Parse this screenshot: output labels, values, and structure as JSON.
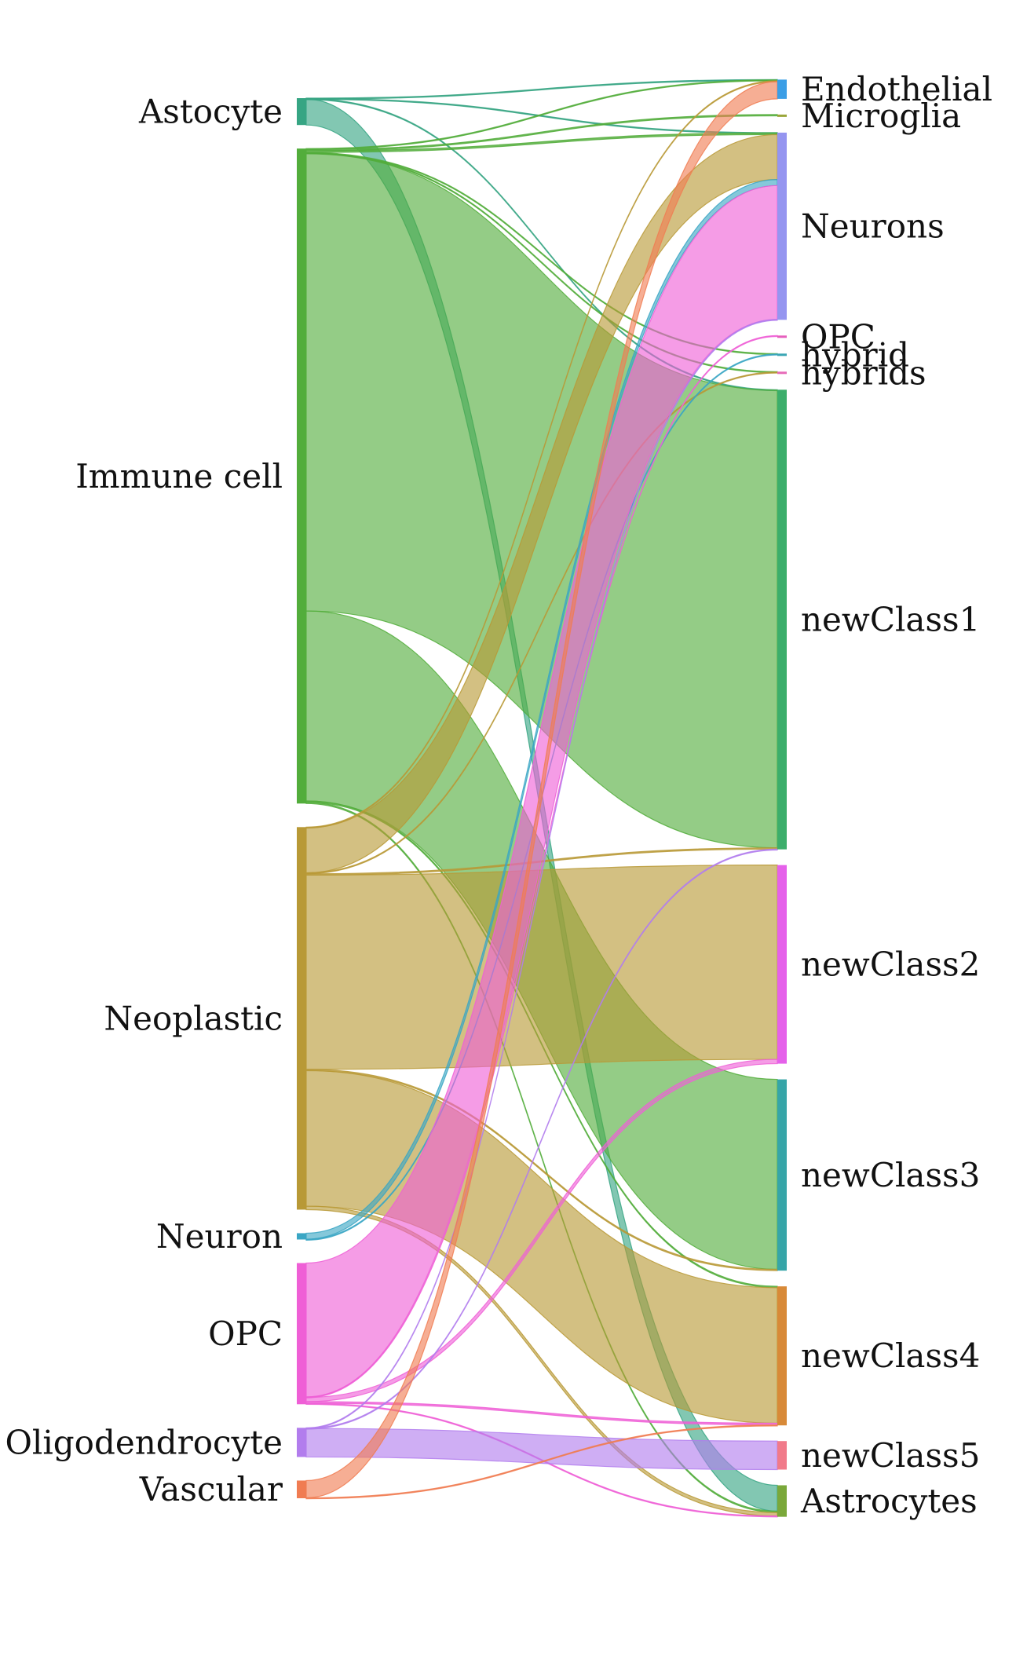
{
  "chart_data": {
    "type": "sankey",
    "title": "",
    "sources": [
      {
        "id": "astocyte",
        "label": "Astocyte",
        "color": "#36a583"
      },
      {
        "id": "immune",
        "label": "Immune cell",
        "color": "#52ad3b"
      },
      {
        "id": "neoplastic",
        "label": "Neoplastic",
        "color": "#b89936"
      },
      {
        "id": "neuron",
        "label": "Neuron",
        "color": "#3aa6c4"
      },
      {
        "id": "opc",
        "label": "OPC",
        "color": "#ef5fd6"
      },
      {
        "id": "oligo",
        "label": "Oligodendrocyte",
        "color": "#b27ded"
      },
      {
        "id": "vascular",
        "label": "Vascular",
        "color": "#f07c52"
      }
    ],
    "targets": [
      {
        "id": "endothelial",
        "label": "Endothelial",
        "color": "#3b9ee6"
      },
      {
        "id": "microglia",
        "label": "Microglia",
        "color": "#9aa63a"
      },
      {
        "id": "neurons",
        "label": "Neurons",
        "color": "#9595f0"
      },
      {
        "id": "t_opc",
        "label": "OPC",
        "color": "#e65fbd"
      },
      {
        "id": "hybrid",
        "label": "hybrid",
        "color": "#3aa6b4"
      },
      {
        "id": "hybrids",
        "label": "hybrids",
        "color": "#e66ab8"
      },
      {
        "id": "newClass1",
        "label": "newClass1",
        "color": "#3cae6b"
      },
      {
        "id": "newClass2",
        "label": "newClass2",
        "color": "#e561ea"
      },
      {
        "id": "newClass3",
        "label": "newClass3",
        "color": "#36a5a8"
      },
      {
        "id": "newClass4",
        "label": "newClass4",
        "color": "#d88a38"
      },
      {
        "id": "newClass5",
        "label": "newClass5",
        "color": "#f17a8a"
      },
      {
        "id": "astrocytes",
        "label": "Astrocytes",
        "color": "#7aa83a"
      }
    ],
    "links": [
      {
        "source": "astocyte",
        "target": "endothelial",
        "value": 0.3
      },
      {
        "source": "astocyte",
        "target": "neurons",
        "value": 0.3
      },
      {
        "source": "astocyte",
        "target": "newClass1",
        "value": 0.5
      },
      {
        "source": "astocyte",
        "target": "astrocytes",
        "value": 30
      },
      {
        "source": "immune",
        "target": "endothelial",
        "value": 1
      },
      {
        "source": "immune",
        "target": "microglia",
        "value": 1.5
      },
      {
        "source": "immune",
        "target": "neurons",
        "value": 2
      },
      {
        "source": "immune",
        "target": "hybrid",
        "value": 0.5
      },
      {
        "source": "immune",
        "target": "hybrids",
        "value": 0.5
      },
      {
        "source": "immune",
        "target": "newClass1",
        "value": 530
      },
      {
        "source": "immune",
        "target": "newClass3",
        "value": 220
      },
      {
        "source": "immune",
        "target": "newClass4",
        "value": 1.5
      },
      {
        "source": "immune",
        "target": "astrocytes",
        "value": 1.5
      },
      {
        "source": "neoplastic",
        "target": "endothelial",
        "value": 1
      },
      {
        "source": "neoplastic",
        "target": "neurons",
        "value": 52
      },
      {
        "source": "neoplastic",
        "target": "hybrids",
        "value": 1
      },
      {
        "source": "neoplastic",
        "target": "newClass1",
        "value": 1.5
      },
      {
        "source": "neoplastic",
        "target": "newClass2",
        "value": 225
      },
      {
        "source": "neoplastic",
        "target": "newClass3",
        "value": 1.5
      },
      {
        "source": "neoplastic",
        "target": "newClass4",
        "value": 157
      },
      {
        "source": "neoplastic",
        "target": "astrocytes",
        "value": 4
      },
      {
        "source": "neuron",
        "target": "neurons",
        "value": 7
      },
      {
        "source": "neuron",
        "target": "hybrid",
        "value": 0.3
      },
      {
        "source": "opc",
        "target": "neurons",
        "value": 155
      },
      {
        "source": "opc",
        "target": "t_opc",
        "value": 0.5
      },
      {
        "source": "opc",
        "target": "newClass2",
        "value": 5
      },
      {
        "source": "opc",
        "target": "newClass4",
        "value": 2
      },
      {
        "source": "opc",
        "target": "astrocytes",
        "value": 1
      },
      {
        "source": "oligo",
        "target": "neurons",
        "value": 0.5
      },
      {
        "source": "oligo",
        "target": "newClass1",
        "value": 0.3
      },
      {
        "source": "oligo",
        "target": "newClass5",
        "value": 33
      },
      {
        "source": "vascular",
        "target": "endothelial",
        "value": 20
      },
      {
        "source": "vascular",
        "target": "newClass4",
        "value": 0.5
      }
    ]
  }
}
